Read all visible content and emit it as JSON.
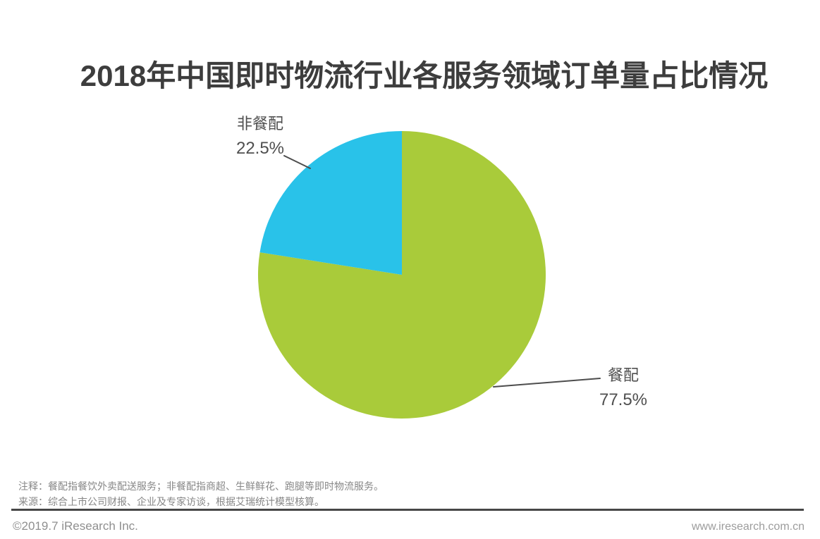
{
  "chart_data": {
    "type": "pie",
    "title": "2018年中国即时物流行业各服务领域订单量占比情况",
    "slices": [
      {
        "id": "meal-delivery",
        "label": "餐配",
        "value": 77.5,
        "display": "77.5%",
        "color": "#A9CB3A"
      },
      {
        "id": "non-meal",
        "label": "非餐配",
        "value": 22.5,
        "display": "22.5%",
        "color": "#29C2E9"
      }
    ],
    "units": "percent of order volume",
    "start_angle": "12 o'clock, clockwise",
    "legend_position": "none — direct slice labels with leader lines"
  },
  "notes": {
    "annotation": "注释：餐配指餐饮外卖配送服务；非餐配指商超、生鲜鲜花、跑腿等即时物流服务。",
    "source": "来源：综合上市公司财报、企业及专家访谈，根据艾瑞统计模型核算。"
  },
  "footer": {
    "copyright": "©2019.7 iResearch Inc.",
    "website": "www.iresearch.com.cn"
  },
  "colors": {
    "slice_meal": "#A9CB3A",
    "slice_non_meal": "#29C2E9",
    "leader_line": "#4d4d4d",
    "divider": "#474747",
    "title_text": "#3d3d3d",
    "label_text": "#4f4f4f",
    "note_text": "#878787",
    "footer_text": "#8f8f8f"
  }
}
